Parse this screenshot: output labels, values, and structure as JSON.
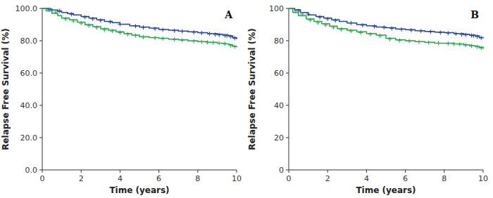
{
  "chart_data": [
    {
      "type": "line",
      "xlabel": "Time (years)",
      "ylabel": "Relapse Free Survival (%)",
      "annotations": [
        "A"
      ],
      "xlim": [
        0,
        10
      ],
      "ylim": [
        0,
        100
      ],
      "xticks": [
        0,
        2,
        4,
        6,
        8,
        10
      ],
      "yticks": [
        {
          "value": 0,
          "label": "0.0"
        },
        {
          "value": 20,
          "label": "20.0"
        },
        {
          "value": 40,
          "label": "40.0"
        },
        {
          "value": 60,
          "label": "60.0"
        },
        {
          "value": 80,
          "label": "80.0"
        },
        {
          "value": 100,
          "label": "100.0"
        }
      ],
      "grid": false,
      "series": [
        {
          "type": "line",
          "line_style": "step",
          "color": "#2244aa",
          "x": [
            0,
            0.3,
            0.5,
            0.8,
            1.0,
            1.3,
            1.6,
            2.0,
            2.4,
            2.8,
            3.2,
            3.6,
            4.0,
            4.5,
            5.0,
            5.5,
            6.0,
            6.5,
            7.0,
            7.5,
            8.0,
            8.5,
            9.0,
            9.3,
            9.6,
            9.8,
            10.0
          ],
          "values": [
            100,
            99.5,
            99.0,
            98.2,
            97.5,
            96.8,
            96.0,
            95.0,
            94.0,
            93.0,
            92.0,
            91.2,
            90.2,
            89.2,
            88.5,
            87.8,
            87.0,
            86.5,
            86.0,
            85.5,
            85.0,
            84.5,
            84.0,
            83.5,
            83.0,
            82.0,
            81.0
          ]
        },
        {
          "type": "scatter",
          "marker": "plus",
          "color": "#2244aa",
          "x": [
            0.4,
            0.9,
            1.5,
            2.2,
            2.6,
            3.0,
            3.5,
            4.0,
            4.8,
            5.2,
            5.8,
            6.2,
            6.8,
            7.2,
            7.8,
            8.2,
            8.6,
            8.9,
            9.1,
            9.4,
            9.5,
            9.7,
            9.9
          ],
          "values": [
            99.7,
            98.6,
            96.4,
            94.5,
            93.5,
            92.5,
            91.6,
            90.2,
            89.0,
            88.2,
            87.4,
            86.8,
            86.2,
            85.8,
            85.2,
            84.8,
            84.3,
            83.8,
            83.6,
            83.2,
            83.1,
            82.5,
            81.5
          ]
        },
        {
          "type": "line",
          "line_style": "step",
          "color": "#22aa44",
          "x": [
            0,
            0.2,
            0.5,
            0.8,
            1.0,
            1.4,
            1.8,
            2.2,
            2.6,
            3.0,
            3.4,
            3.8,
            4.2,
            4.6,
            5.0,
            5.5,
            6.0,
            6.5,
            7.0,
            7.5,
            8.0,
            8.5,
            9.0,
            9.3,
            9.6,
            9.8,
            10.0
          ],
          "values": [
            100,
            98.5,
            97.0,
            95.5,
            94.0,
            93.0,
            91.5,
            90.0,
            88.8,
            87.5,
            86.5,
            85.5,
            84.5,
            83.5,
            82.5,
            82.0,
            81.5,
            81.0,
            80.5,
            80.0,
            79.5,
            79.0,
            78.5,
            78.0,
            77.5,
            76.5,
            76.0
          ]
        },
        {
          "type": "scatter",
          "marker": "plus",
          "color": "#22aa44",
          "x": [
            0.35,
            0.7,
            1.2,
            1.6,
            2.0,
            2.4,
            2.8,
            3.2,
            3.6,
            4.0,
            4.4,
            4.8,
            5.2,
            5.8,
            6.2,
            6.8,
            7.2,
            7.8,
            8.2,
            8.5,
            8.8,
            9.1,
            9.4,
            9.7,
            9.9
          ],
          "values": [
            99.2,
            97.8,
            93.5,
            92.2,
            90.8,
            89.4,
            88.1,
            86.8,
            86.0,
            85.0,
            84.0,
            83.2,
            82.2,
            81.8,
            81.3,
            80.8,
            80.3,
            79.8,
            79.3,
            79.0,
            78.8,
            78.5,
            78.2,
            77.0,
            76.3
          ]
        }
      ]
    },
    {
      "type": "line",
      "xlabel": "Time (years)",
      "ylabel": "Relapse Free Survival (%)",
      "annotations": [
        "B"
      ],
      "xlim": [
        0,
        10
      ],
      "ylim": [
        0,
        100
      ],
      "xticks": [
        0,
        2,
        4,
        6,
        8,
        10
      ],
      "yticks": [
        0,
        20,
        40,
        60,
        80,
        100
      ],
      "grid": false,
      "series": [
        {
          "type": "line",
          "line_style": "step",
          "color": "#2244aa",
          "x": [
            0,
            0.3,
            0.6,
            1.0,
            1.4,
            1.8,
            2.2,
            2.6,
            3.0,
            3.5,
            4.0,
            4.5,
            5.0,
            5.5,
            6.0,
            6.5,
            7.0,
            7.5,
            8.0,
            8.5,
            9.0,
            9.3,
            9.6,
            9.8,
            10.0
          ],
          "values": [
            100,
            99.2,
            97.5,
            96.0,
            95.0,
            94.0,
            93.0,
            92.0,
            91.0,
            90.0,
            89.2,
            88.5,
            88.0,
            87.3,
            86.8,
            86.2,
            85.8,
            85.3,
            85.0,
            84.5,
            84.0,
            83.5,
            83.0,
            82.0,
            81.5
          ]
        },
        {
          "type": "scatter",
          "marker": "plus",
          "color": "#2244aa",
          "x": [
            0.5,
            1.0,
            1.6,
            2.0,
            2.4,
            3.2,
            3.8,
            4.4,
            4.9,
            5.3,
            5.8,
            6.3,
            6.8,
            7.3,
            7.8,
            8.2,
            8.6,
            8.9,
            9.1,
            9.4,
            9.5,
            9.7,
            9.9
          ],
          "values": [
            98.4,
            96.5,
            94.5,
            93.5,
            92.5,
            91.0,
            89.6,
            88.8,
            88.2,
            87.6,
            87.0,
            86.5,
            86.0,
            85.5,
            85.1,
            84.7,
            84.3,
            83.8,
            83.6,
            83.2,
            83.1,
            82.5,
            81.8
          ]
        },
        {
          "type": "line",
          "line_style": "step",
          "color": "#22aa44",
          "x": [
            0,
            0.2,
            0.5,
            0.9,
            1.3,
            1.7,
            2.1,
            2.5,
            3.0,
            3.5,
            4.0,
            4.5,
            5.0,
            5.5,
            6.0,
            6.5,
            7.0,
            7.5,
            8.0,
            8.5,
            9.0,
            9.3,
            9.6,
            9.8,
            10.0
          ],
          "values": [
            100,
            97.5,
            95.5,
            93.5,
            92.0,
            90.5,
            89.0,
            87.5,
            86.5,
            85.5,
            84.5,
            83.5,
            81.5,
            80.5,
            80.0,
            79.5,
            79.0,
            78.5,
            78.5,
            78.0,
            77.5,
            77.0,
            76.5,
            76.0,
            75.0
          ]
        },
        {
          "type": "scatter",
          "marker": "plus",
          "color": "#22aa44",
          "x": [
            0.35,
            0.7,
            1.1,
            1.5,
            1.9,
            2.3,
            2.7,
            3.2,
            3.7,
            4.2,
            4.7,
            5.2,
            5.7,
            6.2,
            6.7,
            7.2,
            7.7,
            8.2,
            8.5,
            8.8,
            9.1,
            9.4,
            9.7,
            9.9
          ],
          "values": [
            98.5,
            96.5,
            92.8,
            91.2,
            89.8,
            88.2,
            87.0,
            86.0,
            85.0,
            84.0,
            83.0,
            81.0,
            80.2,
            79.8,
            79.3,
            78.8,
            78.5,
            78.3,
            78.0,
            77.8,
            77.3,
            76.8,
            76.2,
            75.5
          ]
        }
      ]
    }
  ]
}
